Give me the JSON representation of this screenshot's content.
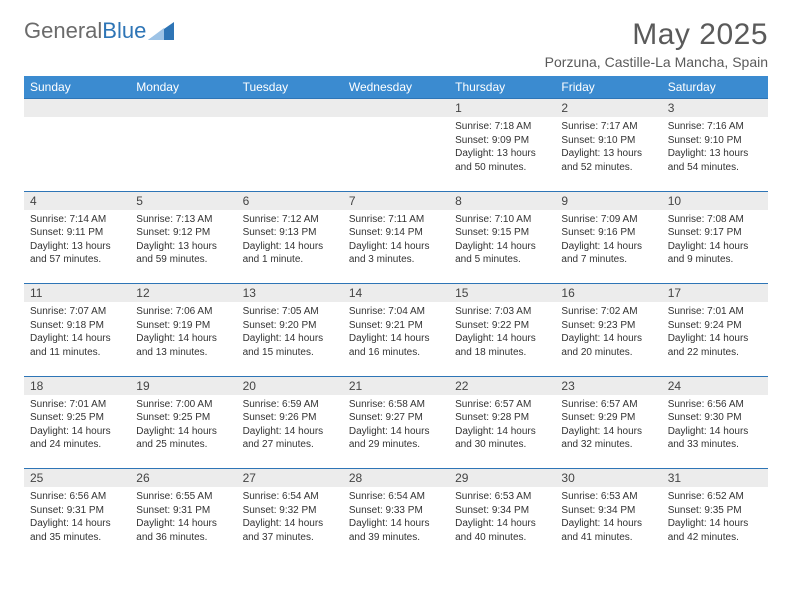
{
  "brand": {
    "part1": "General",
    "part2": "Blue"
  },
  "title": "May 2025",
  "location": "Porzuna, Castille-La Mancha, Spain",
  "colors": {
    "header_bg": "#3b8bd0",
    "header_text": "#ffffff",
    "daynum_bg": "#ececec",
    "rule": "#2e75b6",
    "body_text": "#333333",
    "title_text": "#5a5a5a",
    "logo_gray": "#6b6b6b",
    "logo_blue": "#2e75b6"
  },
  "weekdays": [
    "Sunday",
    "Monday",
    "Tuesday",
    "Wednesday",
    "Thursday",
    "Friday",
    "Saturday"
  ],
  "weeks": [
    [
      null,
      null,
      null,
      null,
      {
        "n": "1",
        "sr": "7:18 AM",
        "ss": "9:09 PM",
        "dl": "13 hours and 50 minutes."
      },
      {
        "n": "2",
        "sr": "7:17 AM",
        "ss": "9:10 PM",
        "dl": "13 hours and 52 minutes."
      },
      {
        "n": "3",
        "sr": "7:16 AM",
        "ss": "9:10 PM",
        "dl": "13 hours and 54 minutes."
      }
    ],
    [
      {
        "n": "4",
        "sr": "7:14 AM",
        "ss": "9:11 PM",
        "dl": "13 hours and 57 minutes."
      },
      {
        "n": "5",
        "sr": "7:13 AM",
        "ss": "9:12 PM",
        "dl": "13 hours and 59 minutes."
      },
      {
        "n": "6",
        "sr": "7:12 AM",
        "ss": "9:13 PM",
        "dl": "14 hours and 1 minute."
      },
      {
        "n": "7",
        "sr": "7:11 AM",
        "ss": "9:14 PM",
        "dl": "14 hours and 3 minutes."
      },
      {
        "n": "8",
        "sr": "7:10 AM",
        "ss": "9:15 PM",
        "dl": "14 hours and 5 minutes."
      },
      {
        "n": "9",
        "sr": "7:09 AM",
        "ss": "9:16 PM",
        "dl": "14 hours and 7 minutes."
      },
      {
        "n": "10",
        "sr": "7:08 AM",
        "ss": "9:17 PM",
        "dl": "14 hours and 9 minutes."
      }
    ],
    [
      {
        "n": "11",
        "sr": "7:07 AM",
        "ss": "9:18 PM",
        "dl": "14 hours and 11 minutes."
      },
      {
        "n": "12",
        "sr": "7:06 AM",
        "ss": "9:19 PM",
        "dl": "14 hours and 13 minutes."
      },
      {
        "n": "13",
        "sr": "7:05 AM",
        "ss": "9:20 PM",
        "dl": "14 hours and 15 minutes."
      },
      {
        "n": "14",
        "sr": "7:04 AM",
        "ss": "9:21 PM",
        "dl": "14 hours and 16 minutes."
      },
      {
        "n": "15",
        "sr": "7:03 AM",
        "ss": "9:22 PM",
        "dl": "14 hours and 18 minutes."
      },
      {
        "n": "16",
        "sr": "7:02 AM",
        "ss": "9:23 PM",
        "dl": "14 hours and 20 minutes."
      },
      {
        "n": "17",
        "sr": "7:01 AM",
        "ss": "9:24 PM",
        "dl": "14 hours and 22 minutes."
      }
    ],
    [
      {
        "n": "18",
        "sr": "7:01 AM",
        "ss": "9:25 PM",
        "dl": "14 hours and 24 minutes."
      },
      {
        "n": "19",
        "sr": "7:00 AM",
        "ss": "9:25 PM",
        "dl": "14 hours and 25 minutes."
      },
      {
        "n": "20",
        "sr": "6:59 AM",
        "ss": "9:26 PM",
        "dl": "14 hours and 27 minutes."
      },
      {
        "n": "21",
        "sr": "6:58 AM",
        "ss": "9:27 PM",
        "dl": "14 hours and 29 minutes."
      },
      {
        "n": "22",
        "sr": "6:57 AM",
        "ss": "9:28 PM",
        "dl": "14 hours and 30 minutes."
      },
      {
        "n": "23",
        "sr": "6:57 AM",
        "ss": "9:29 PM",
        "dl": "14 hours and 32 minutes."
      },
      {
        "n": "24",
        "sr": "6:56 AM",
        "ss": "9:30 PM",
        "dl": "14 hours and 33 minutes."
      }
    ],
    [
      {
        "n": "25",
        "sr": "6:56 AM",
        "ss": "9:31 PM",
        "dl": "14 hours and 35 minutes."
      },
      {
        "n": "26",
        "sr": "6:55 AM",
        "ss": "9:31 PM",
        "dl": "14 hours and 36 minutes."
      },
      {
        "n": "27",
        "sr": "6:54 AM",
        "ss": "9:32 PM",
        "dl": "14 hours and 37 minutes."
      },
      {
        "n": "28",
        "sr": "6:54 AM",
        "ss": "9:33 PM",
        "dl": "14 hours and 39 minutes."
      },
      {
        "n": "29",
        "sr": "6:53 AM",
        "ss": "9:34 PM",
        "dl": "14 hours and 40 minutes."
      },
      {
        "n": "30",
        "sr": "6:53 AM",
        "ss": "9:34 PM",
        "dl": "14 hours and 41 minutes."
      },
      {
        "n": "31",
        "sr": "6:52 AM",
        "ss": "9:35 PM",
        "dl": "14 hours and 42 minutes."
      }
    ]
  ],
  "labels": {
    "sunrise": "Sunrise:",
    "sunset": "Sunset:",
    "daylight": "Daylight:"
  }
}
